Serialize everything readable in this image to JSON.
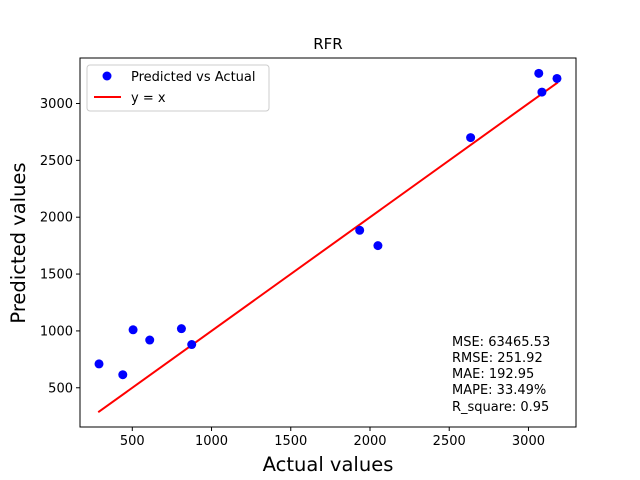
{
  "chart_data": {
    "type": "scatter",
    "title": "RFR",
    "xlabel": "Actual values",
    "ylabel": "Predicted values",
    "xlim": [
      170,
      3300
    ],
    "ylim": [
      155,
      3400
    ],
    "x_ticks": [
      500,
      1000,
      1500,
      2000,
      2500,
      3000
    ],
    "y_ticks": [
      500,
      1000,
      1500,
      2000,
      2500,
      3000
    ],
    "grid": false,
    "legend_position": "top-left",
    "series": [
      {
        "name": "Predicted vs Actual",
        "kind": "scatter",
        "color": "#0000ff",
        "points": [
          {
            "x": 290,
            "y": 710
          },
          {
            "x": 440,
            "y": 615
          },
          {
            "x": 505,
            "y": 1010
          },
          {
            "x": 610,
            "y": 920
          },
          {
            "x": 810,
            "y": 1020
          },
          {
            "x": 875,
            "y": 880
          },
          {
            "x": 1935,
            "y": 1885
          },
          {
            "x": 2050,
            "y": 1750
          },
          {
            "x": 2635,
            "y": 2700
          },
          {
            "x": 3065,
            "y": 3265
          },
          {
            "x": 3085,
            "y": 3100
          },
          {
            "x": 3180,
            "y": 3220
          }
        ]
      },
      {
        "name": "y = x",
        "kind": "line",
        "color": "#ff0000",
        "points": [
          {
            "x": 285,
            "y": 285
          },
          {
            "x": 3185,
            "y": 3185
          }
        ]
      }
    ],
    "annotations": [
      "MSE: 63465.53",
      "RMSE: 251.92",
      "MAE: 192.95",
      "MAPE: 33.49%",
      "R_square: 0.95"
    ]
  }
}
